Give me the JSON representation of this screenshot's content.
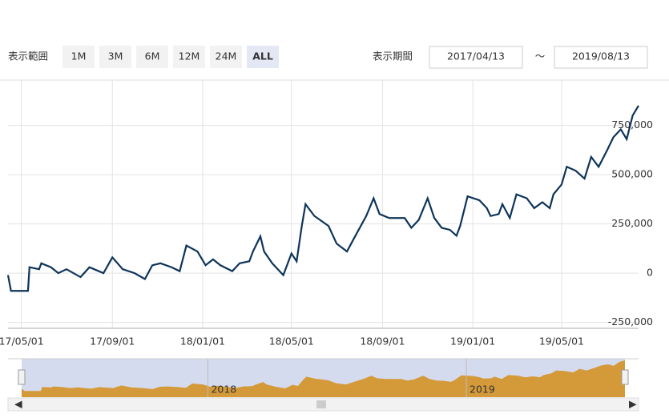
{
  "toolbar": {
    "range_label": "表示範囲",
    "buttons": [
      "1M",
      "3M",
      "6M",
      "12M",
      "24M",
      "ALL"
    ],
    "active": "ALL",
    "period_label": "表示期間",
    "from": "2017/04/13",
    "separator": "～",
    "to": "2019/08/13"
  },
  "chart_data": {
    "type": "line",
    "grid": true,
    "x": [
      "17/04/13",
      "17/04/17",
      "17/05/10",
      "17/05/12",
      "17/05/25",
      "17/05/28",
      "17/06/10",
      "17/06/20",
      "17/07/01",
      "17/07/20",
      "17/08/01",
      "17/08/20",
      "17/09/01",
      "17/09/15",
      "17/10/01",
      "17/10/15",
      "17/10/25",
      "17/11/05",
      "17/11/20",
      "17/12/01",
      "17/12/10",
      "17/12/25",
      "18/01/05",
      "18/01/15",
      "18/01/25",
      "18/02/10",
      "18/02/20",
      "18/03/05",
      "18/03/10",
      "18/03/20",
      "18/03/25",
      "18/04/05",
      "18/04/20",
      "18/05/01",
      "18/05/08",
      "18/05/15",
      "18/05/20",
      "18/06/01",
      "18/06/20",
      "18/07/01",
      "18/07/15",
      "18/07/25",
      "18/08/10",
      "18/08/20",
      "18/08/28",
      "18/09/10",
      "18/10/01",
      "18/10/10",
      "18/10/20",
      "18/11/01",
      "18/11/10",
      "18/11/20",
      "18/12/01",
      "18/12/10",
      "18/12/15",
      "18/12/25",
      "19/01/10",
      "19/01/20",
      "19/01/25",
      "19/02/05",
      "19/02/10",
      "19/02/20",
      "19/03/01",
      "19/03/15",
      "19/03/25",
      "19/04/05",
      "19/04/15",
      "19/04/20",
      "19/05/01",
      "19/05/08",
      "19/05/20",
      "19/06/01",
      "19/06/10",
      "19/06/20",
      "19/07/01",
      "19/07/10",
      "19/07/20",
      "19/07/28",
      "19/08/05",
      "19/08/13"
    ],
    "series": [
      {
        "color": "#0d3459",
        "values": [
          -10000,
          -90000,
          -90000,
          30000,
          20000,
          50000,
          30000,
          0,
          20000,
          -20000,
          30000,
          0,
          80000,
          20000,
          0,
          -30000,
          40000,
          50000,
          30000,
          10000,
          140000,
          110000,
          40000,
          70000,
          40000,
          10000,
          50000,
          60000,
          110000,
          187000,
          110000,
          50000,
          -10000,
          100000,
          60000,
          240000,
          350000,
          290000,
          240000,
          150000,
          110000,
          180000,
          290000,
          380000,
          300000,
          280000,
          280000,
          230000,
          270000,
          380000,
          280000,
          230000,
          220000,
          190000,
          240000,
          390000,
          370000,
          330000,
          290000,
          300000,
          350000,
          280000,
          400000,
          380000,
          330000,
          360000,
          330000,
          400000,
          450000,
          540000,
          520000,
          480000,
          590000,
          540000,
          620000,
          690000,
          730000,
          680000,
          800000,
          850000
        ]
      }
    ],
    "xlim": [
      "17/04/13",
      "19/08/13"
    ],
    "xticks": [
      "17/05/01",
      "17/09/01",
      "18/01/01",
      "18/05/01",
      "18/09/01",
      "19/01/01",
      "19/05/01"
    ],
    "ylim": [
      -280000,
      980000
    ],
    "yticks": [
      {
        "value": -250000,
        "label": "-250,000"
      },
      0,
      {
        "value": 250000,
        "label": "250,000"
      },
      {
        "value": 500000,
        "label": "500,000"
      },
      {
        "value": 750000,
        "label": "750,000"
      }
    ],
    "navigator": {
      "labels": [
        "2018",
        "2019"
      ],
      "label_x": [
        "18/01/01",
        "19/01/01"
      ],
      "color": "#d49a3a",
      "background": "#d5dbee"
    }
  }
}
